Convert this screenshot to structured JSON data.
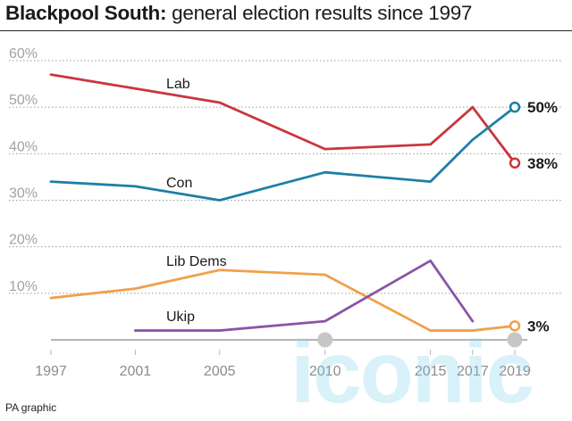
{
  "title_bold": "Blackpool South:",
  "title_rest": " general election results since 1997",
  "source": "PA graphic",
  "watermark": "iconic",
  "chart_data": {
    "type": "line",
    "title": "Blackpool South: general election results since 1997",
    "x": [
      1997,
      2001,
      2005,
      2010,
      2015,
      2017,
      2019
    ],
    "x_tick_labels": [
      "1997",
      "2001",
      "2005",
      "2010",
      "2015",
      "2017",
      "2019"
    ],
    "ylim": [
      0,
      60
    ],
    "y_ticks": [
      10,
      20,
      30,
      40,
      50,
      60
    ],
    "y_tick_labels": [
      "10%",
      "20%",
      "30%",
      "40%",
      "50%",
      "60%"
    ],
    "grid": "horizontal dotted",
    "series": [
      {
        "name": "Lab",
        "color": "#c8373d",
        "x": [
          1997,
          2001,
          2005,
          2010,
          2015,
          2017,
          2019
        ],
        "values": [
          57,
          54,
          51,
          41,
          42,
          50,
          38
        ],
        "end_label": "38%"
      },
      {
        "name": "Con",
        "color": "#1e7fa5",
        "x": [
          1997,
          2001,
          2005,
          2010,
          2015,
          2017,
          2019
        ],
        "values": [
          34,
          33,
          30,
          36,
          34,
          43,
          50
        ],
        "end_label": "50%"
      },
      {
        "name": "Lib Dems",
        "color": "#f0a04b",
        "x": [
          1997,
          2001,
          2005,
          2010,
          2015,
          2017,
          2019
        ],
        "values": [
          9,
          11,
          15,
          14,
          2,
          2,
          3
        ],
        "end_label": "3%"
      },
      {
        "name": "Ukip",
        "color": "#8a55a6",
        "x": [
          2001,
          2005,
          2010,
          2015,
          2017
        ],
        "values": [
          2,
          2,
          4,
          17,
          4
        ]
      }
    ]
  }
}
